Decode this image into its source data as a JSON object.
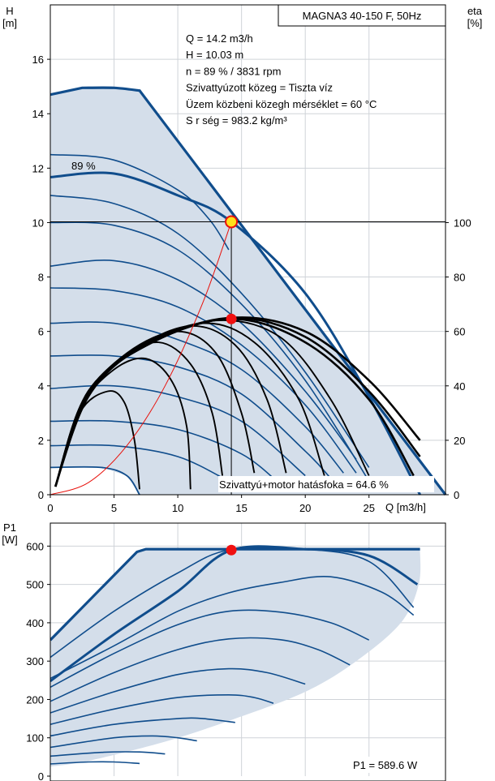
{
  "chart_data": [
    {
      "type": "line",
      "id": "hq",
      "title": "MAGNA3 40-150 F, 50Hz",
      "ylabel_line1": "H",
      "ylabel_line2": "[m]",
      "y2label_line1": "eta",
      "y2label_line2": "[%]",
      "xlabel": "Q [m3/h]",
      "xlim": [
        0,
        31
      ],
      "ylim": [
        0,
        18
      ],
      "y2lim": [
        0,
        180
      ],
      "xticks": [
        0,
        5,
        10,
        15,
        20,
        25
      ],
      "yticks": [
        0,
        2,
        4,
        6,
        8,
        10,
        12,
        14,
        16
      ],
      "y2ticks": [
        0,
        20,
        40,
        60,
        80,
        100
      ],
      "grid": true,
      "info_lines": [
        "Q = 14.2 m3/h",
        "H = 10.03 m",
        "n = 89 % / 3831 rpm",
        "Szivattyúzott közeg = Tiszta víz",
        "Üzem közbeni közegh  mérséklet = 60 °C",
        "S  r  ség = 983.2 kg/m³"
      ],
      "speed_label": "89 %",
      "efficiency_label": "Szivattyú+motor hatásfoka = 64.6 %",
      "operating_point": {
        "Q": 14.2,
        "H": 10.03,
        "eta": 64.6
      },
      "max_curve": [
        [
          0,
          14.7
        ],
        [
          2.5,
          14.95
        ],
        [
          5,
          14.95
        ],
        [
          7,
          14.85
        ],
        [
          31,
          0
        ]
      ],
      "min_curve": [
        [
          0,
          1.0
        ],
        [
          4,
          1.0
        ],
        [
          6,
          0.7
        ],
        [
          7,
          0
        ]
      ],
      "series": [
        {
          "points": [
            [
              0,
              12.5
            ],
            [
              5,
              12.3
            ],
            [
              10,
              11.2
            ],
            [
              12.5,
              10.1
            ],
            [
              14,
              9.0
            ]
          ]
        },
        {
          "points": [
            [
              0,
              11.67
            ],
            [
              5,
              11.8
            ],
            [
              10,
              11.0
            ],
            [
              14.2,
              10.03
            ],
            [
              20,
              7.4
            ],
            [
              25,
              3.6
            ],
            [
              29,
              0
            ]
          ],
          "bold": true
        },
        {
          "points": [
            [
              0,
              11.0
            ],
            [
              5,
              10.7
            ],
            [
              10,
              9.6
            ],
            [
              15,
              7.4
            ],
            [
              20,
              4.5
            ],
            [
              25,
              1.0
            ]
          ]
        },
        {
          "points": [
            [
              0,
              10.0
            ],
            [
              5,
              9.9
            ],
            [
              10,
              9.0
            ],
            [
              15,
              7.0
            ],
            [
              20,
              4.2
            ],
            [
              25,
              0.5
            ]
          ]
        },
        {
          "points": [
            [
              0,
              8.4
            ],
            [
              5,
              8.6
            ],
            [
              10,
              7.9
            ],
            [
              15,
              6.3
            ],
            [
              20,
              3.8
            ],
            [
              24,
              1.3
            ]
          ]
        },
        {
          "points": [
            [
              0,
              7.6
            ],
            [
              5,
              7.5
            ],
            [
              10,
              6.9
            ],
            [
              15,
              5.5
            ],
            [
              20,
              3.3
            ],
            [
              24,
              0.8
            ]
          ]
        },
        {
          "points": [
            [
              0,
              6.3
            ],
            [
              5,
              6.3
            ],
            [
              10,
              5.7
            ],
            [
              15,
              4.6
            ],
            [
              20,
              2.5
            ],
            [
              23,
              0.8
            ]
          ]
        },
        {
          "points": [
            [
              0,
              5.1
            ],
            [
              5,
              5.1
            ],
            [
              10,
              4.7
            ],
            [
              15,
              3.7
            ],
            [
              20,
              1.6
            ],
            [
              22,
              0.6
            ]
          ]
        },
        {
          "points": [
            [
              0,
              3.9
            ],
            [
              5,
              4.0
            ],
            [
              10,
              3.6
            ],
            [
              15,
              2.7
            ],
            [
              20,
              0.7
            ]
          ]
        },
        {
          "points": [
            [
              0,
              2.7
            ],
            [
              5,
              2.7
            ],
            [
              10,
              2.4
            ],
            [
              15,
              1.5
            ],
            [
              18,
              0.4
            ]
          ]
        },
        {
          "points": [
            [
              0,
              1.8
            ],
            [
              5,
              1.8
            ],
            [
              10,
              1.4
            ],
            [
              14,
              0.5
            ]
          ]
        }
      ],
      "eta_curves": [
        {
          "points": [
            [
              0.4,
              3
            ],
            [
              3,
              38
            ],
            [
              8,
              56.2
            ],
            [
              14.2,
              64.6
            ],
            [
              20,
              56
            ],
            [
              25,
              35
            ],
            [
              28.5,
              7
            ]
          ]
        },
        {
          "points": [
            [
              0.4,
              3
            ],
            [
              3,
              38
            ],
            [
              8,
              56
            ],
            [
              14.2,
              65
            ],
            [
              20,
              58
            ],
            [
              25,
              38
            ],
            [
              29,
              14
            ]
          ]
        },
        {
          "points": [
            [
              0.4,
              3
            ],
            [
              3,
              38
            ],
            [
              8,
              56
            ],
            [
              14.2,
              65
            ],
            [
              20,
              60
            ],
            [
              25,
              42
            ],
            [
              29,
              20
            ]
          ]
        },
        {
          "points": [
            [
              0.4,
              3
            ],
            [
              3,
              37
            ],
            [
              7.5,
              55
            ],
            [
              13,
              64
            ],
            [
              18,
              58
            ],
            [
              22,
              35
            ],
            [
              25,
              7
            ]
          ]
        },
        {
          "points": [
            [
              0.4,
              3
            ],
            [
              3,
              36
            ],
            [
              7,
              54
            ],
            [
              12,
              63
            ],
            [
              16,
              56
            ],
            [
              19.5,
              35
            ],
            [
              21.5,
              7
            ]
          ]
        },
        {
          "points": [
            [
              0.4,
              3
            ],
            [
              2.8,
              35
            ],
            [
              6.5,
              53
            ],
            [
              11,
              62
            ],
            [
              14.5,
              55
            ],
            [
              17,
              35
            ],
            [
              18.5,
              8
            ]
          ]
        },
        {
          "points": [
            [
              0.4,
              3
            ],
            [
              2.5,
              34
            ],
            [
              6,
              52
            ],
            [
              10,
              60
            ],
            [
              13,
              52
            ],
            [
              15,
              30
            ],
            [
              16,
              8
            ]
          ]
        },
        {
          "points": [
            [
              0.4,
              3
            ],
            [
              2.5,
              34
            ],
            [
              5.5,
              50
            ],
            [
              8.5,
              56
            ],
            [
              11,
              48
            ],
            [
              12.7,
              30
            ],
            [
              13.5,
              7
            ]
          ]
        },
        {
          "points": [
            [
              0.4,
              3
            ],
            [
              2.4,
              32
            ],
            [
              5,
              46
            ],
            [
              7.5,
              50
            ],
            [
              9.5,
              42
            ],
            [
              10.7,
              25
            ],
            [
              11,
              2
            ]
          ]
        },
        {
          "points": [
            [
              0.4,
              3
            ],
            [
              2.3,
              30
            ],
            [
              4.5,
              38
            ],
            [
              5.8,
              34
            ],
            [
              6.6,
              20
            ],
            [
              7,
              2
            ]
          ]
        }
      ],
      "system_curve": [
        [
          0,
          0
        ],
        [
          3,
          0.45
        ],
        [
          6,
          1.8
        ],
        [
          9,
          4.0
        ],
        [
          12,
          7.1
        ],
        [
          14.2,
          10.03
        ]
      ]
    },
    {
      "type": "line",
      "id": "power",
      "ylabel_line1": "P1",
      "ylabel_line2": "[W]",
      "xlim": [
        0,
        31
      ],
      "ylim": [
        0,
        660
      ],
      "yticks": [
        0,
        100,
        200,
        300,
        400,
        500,
        600
      ],
      "grid": true,
      "power_label": "P1 = 589.6 W",
      "operating_point": {
        "Q": 14.2,
        "P1": 589.6
      },
      "max_curve": [
        [
          0,
          355
        ],
        [
          6.8,
          585
        ],
        [
          7.5,
          592
        ],
        [
          29,
          592
        ],
        [
          28.9,
          500
        ],
        [
          27.5,
          400
        ],
        [
          24,
          300
        ],
        [
          20,
          220
        ],
        [
          14.5,
          150
        ],
        [
          9,
          90
        ],
        [
          3,
          40
        ],
        [
          0,
          25
        ]
      ],
      "series": [
        {
          "points": [
            [
              0,
              310
            ],
            [
              5,
              430
            ],
            [
              10,
              530
            ],
            [
              14,
              590
            ],
            [
              20,
              592
            ],
            [
              25,
              560
            ],
            [
              28.5,
              440
            ]
          ]
        },
        {
          "points": [
            [
              0,
              248
            ],
            [
              5,
              370
            ],
            [
              10,
              482
            ],
            [
              14.2,
              589.6
            ],
            [
              20,
              592
            ],
            [
              25,
              575
            ],
            [
              28.8,
              500
            ]
          ],
          "bold": true
        },
        {
          "points": [
            [
              0,
              255
            ],
            [
              5,
              340
            ],
            [
              10,
              430
            ],
            [
              14,
              478
            ],
            [
              18,
              505
            ],
            [
              22,
              520
            ],
            [
              26,
              480
            ],
            [
              28.5,
              420
            ]
          ]
        },
        {
          "points": [
            [
              0,
              232
            ],
            [
              5,
              320
            ],
            [
              10,
              395
            ],
            [
              14,
              430
            ],
            [
              18,
              428
            ],
            [
              22,
              400
            ],
            [
              25,
              355
            ]
          ]
        },
        {
          "points": [
            [
              0,
              195
            ],
            [
              5,
              270
            ],
            [
              10,
              330
            ],
            [
              14,
              358
            ],
            [
              18,
              356
            ],
            [
              21,
              330
            ],
            [
              23.5,
              290
            ]
          ]
        },
        {
          "points": [
            [
              0,
              165
            ],
            [
              5,
              220
            ],
            [
              10,
              265
            ],
            [
              14,
              280
            ],
            [
              17,
              270
            ],
            [
              20,
              240
            ]
          ]
        },
        {
          "points": [
            [
              0,
              135
            ],
            [
              5,
              175
            ],
            [
              10,
              205
            ],
            [
              14,
              212
            ],
            [
              16,
              205
            ],
            [
              17.5,
              190
            ]
          ]
        },
        {
          "points": [
            [
              0,
              105
            ],
            [
              5,
              135
            ],
            [
              10,
              150
            ],
            [
              12,
              150
            ],
            [
              14.5,
              140
            ]
          ]
        },
        {
          "points": [
            [
              0,
              75
            ],
            [
              5,
              100
            ],
            [
              8,
              105
            ],
            [
              10,
              100
            ],
            [
              11.5,
              92
            ]
          ]
        },
        {
          "points": [
            [
              0,
              52
            ],
            [
              4,
              62
            ],
            [
              7,
              63
            ],
            [
              9,
              58
            ]
          ]
        },
        {
          "points": [
            [
              0,
              32
            ],
            [
              3,
              37
            ],
            [
              5,
              37
            ],
            [
              7,
              33
            ]
          ]
        }
      ]
    }
  ]
}
